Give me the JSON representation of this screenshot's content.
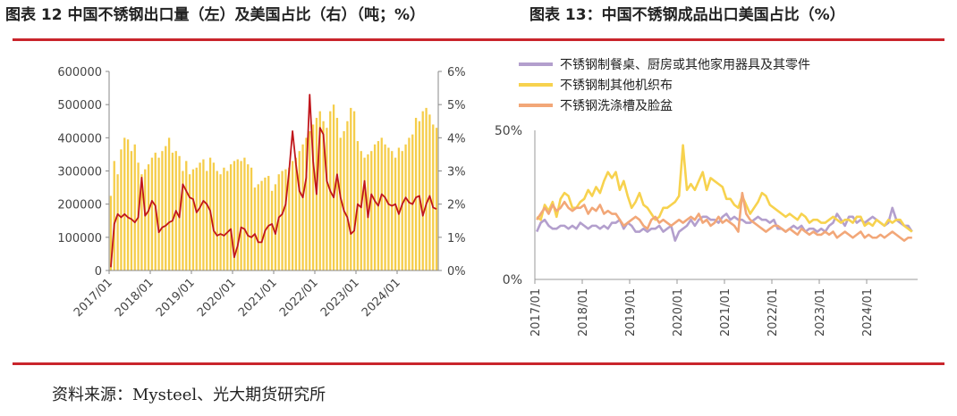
{
  "header": {
    "left_title": "图表 12 中国不锈钢出口量（左）及美国占比（右）（吨；%）",
    "right_title": "图表 13：中国不锈钢成品出口美国占比（%）"
  },
  "footer": {
    "source": "资料来源：Mysteel、光大期货研究所"
  },
  "colors": {
    "bar": "#f5cd4a",
    "ratio": "#c0161c",
    "rule": "#c9252c",
    "s1": "#b39fcd",
    "s2": "#f7d24e",
    "s3": "#f2a778"
  },
  "chart_data": [
    {
      "type": "bar",
      "title": "",
      "x_ticks": [
        "2017/01",
        "2018/01",
        "2019/01",
        "2020/01",
        "2021/01",
        "2022/01",
        "2023/01",
        "2024/01"
      ],
      "y_left_ticks": [
        "0",
        "100000",
        "200000",
        "300000",
        "400000",
        "500000",
        "600000"
      ],
      "y_right_ticks": [
        "0%",
        "1%",
        "2%",
        "3%",
        "4%",
        "5%",
        "6%"
      ],
      "ylim_left": [
        0,
        600000
      ],
      "ylim_right": [
        0,
        6
      ],
      "start_month": "2017/01",
      "series": [
        {
          "axis": "left",
          "type": "bar",
          "values": [
            225000,
            330000,
            290000,
            365000,
            400000,
            395000,
            360000,
            380000,
            325000,
            290000,
            305000,
            320000,
            340000,
            355000,
            340000,
            360000,
            375000,
            400000,
            355000,
            360000,
            345000,
            300000,
            330000,
            290000,
            305000,
            310000,
            325000,
            335000,
            300000,
            340000,
            325000,
            300000,
            290000,
            310000,
            300000,
            320000,
            330000,
            335000,
            330000,
            340000,
            320000,
            310000,
            250000,
            260000,
            270000,
            280000,
            285000,
            240000,
            260000,
            290000,
            300000,
            305000,
            310000,
            330000,
            340000,
            360000,
            380000,
            400000,
            420000,
            440000,
            460000,
            480000,
            450000,
            430000,
            480000,
            500000,
            460000,
            400000,
            420000,
            450000,
            490000,
            480000,
            390000,
            360000,
            340000,
            350000,
            360000,
            380000,
            390000,
            400000,
            380000,
            370000,
            360000,
            340000,
            370000,
            360000,
            380000,
            400000,
            410000,
            460000,
            450000,
            480000,
            490000,
            470000,
            440000,
            430000
          ]
        },
        {
          "axis": "right",
          "type": "line",
          "values": [
            0.1,
            1.4,
            1.7,
            1.6,
            1.7,
            1.6,
            1.55,
            1.45,
            1.6,
            2.8,
            1.65,
            1.8,
            2.1,
            1.95,
            1.15,
            1.3,
            1.35,
            1.45,
            1.5,
            1.8,
            1.6,
            2.6,
            2.4,
            2.2,
            2.15,
            1.75,
            1.9,
            2.1,
            2.0,
            1.8,
            1.2,
            1.05,
            1.1,
            1.05,
            1.15,
            1.25,
            0.4,
            0.75,
            1.3,
            1.25,
            1.05,
            1.0,
            1.1,
            0.85,
            0.85,
            1.2,
            1.35,
            1.4,
            1.1,
            1.6,
            1.7,
            2.0,
            3.0,
            4.2,
            3.2,
            2.4,
            2.2,
            2.8,
            5.3,
            3.3,
            2.3,
            4.3,
            4.1,
            2.7,
            2.4,
            2.2,
            2.9,
            2.2,
            1.8,
            1.6,
            1.1,
            1.2,
            2.0,
            1.9,
            2.7,
            1.6,
            2.3,
            2.1,
            1.95,
            2.3,
            2.2,
            2.0,
            1.95,
            2.0,
            1.7,
            2.0,
            2.2,
            2.05,
            2.0,
            2.2,
            2.25,
            1.65,
            2.0,
            2.25,
            1.9,
            1.85
          ]
        }
      ]
    },
    {
      "type": "line",
      "title": "",
      "x_ticks": [
        "2017/01",
        "2018/01",
        "2019/01",
        "2020/01",
        "2021/01",
        "2022/01",
        "2023/01",
        "2024/01"
      ],
      "y_ticks": [
        "0%",
        "50%"
      ],
      "ylim": [
        0,
        50
      ],
      "start_month": "2017/01",
      "series": [
        {
          "name": "不锈钢制餐桌、厨房或其他家用器具及其零件",
          "values": [
            16,
            19,
            20,
            18,
            17,
            17,
            18,
            18,
            17,
            18,
            17,
            19,
            18,
            17,
            18,
            18,
            17,
            18,
            17,
            19,
            19,
            20,
            17,
            19,
            18,
            16,
            16,
            17,
            16,
            17,
            17,
            18,
            16,
            17,
            18,
            13,
            16,
            17,
            18,
            20,
            18,
            20,
            21,
            21,
            20,
            20,
            19,
            21,
            22,
            20,
            21,
            20,
            20,
            19,
            19,
            20,
            21,
            20,
            20,
            19,
            20,
            17,
            17,
            16,
            17,
            18,
            17,
            18,
            16,
            17,
            17,
            16,
            17,
            16,
            18,
            19,
            22,
            20,
            18,
            21,
            21,
            19,
            20,
            19,
            20,
            21,
            20,
            19,
            18,
            19,
            24,
            20,
            19,
            18,
            18,
            16
          ]
        },
        {
          "name": "不锈钢制其他机织布",
          "values": [
            21,
            20,
            25,
            23,
            26,
            21,
            27,
            29,
            28,
            24,
            24,
            26,
            27,
            30,
            28,
            31,
            29,
            33,
            36,
            34,
            36,
            30,
            33,
            28,
            24,
            26,
            29,
            25,
            24,
            22,
            20,
            21,
            24,
            24,
            25,
            26,
            28,
            45,
            30,
            32,
            30,
            33,
            36,
            30,
            34,
            33,
            32,
            31,
            27,
            27,
            25,
            24,
            28,
            25,
            22,
            24,
            26,
            29,
            28,
            25,
            24,
            23,
            22,
            21,
            22,
            21,
            20,
            22,
            21,
            19,
            20,
            20,
            19,
            19,
            20,
            21,
            20,
            19,
            20,
            20,
            19,
            21,
            21,
            18,
            19,
            18,
            20,
            19,
            18,
            20,
            19,
            20,
            20,
            18,
            17,
            16
          ]
        },
        {
          "name": "不锈钢洗涤槽及脸盆",
          "values": [
            20,
            22,
            24,
            22,
            25,
            23,
            24,
            26,
            24,
            23,
            24,
            24,
            25,
            22,
            24,
            23,
            25,
            22,
            23,
            22,
            22,
            20,
            18,
            19,
            20,
            21,
            20,
            18,
            17,
            20,
            21,
            19,
            20,
            19,
            18,
            19,
            20,
            19,
            20,
            21,
            20,
            22,
            19,
            20,
            18,
            19,
            21,
            19,
            20,
            19,
            18,
            16,
            29,
            22,
            20,
            19,
            18,
            17,
            16,
            17,
            18,
            18,
            17,
            16,
            17,
            16,
            15,
            17,
            16,
            15,
            16,
            15,
            15,
            16,
            15,
            16,
            14,
            15,
            16,
            15,
            14,
            15,
            16,
            14,
            15,
            14,
            14,
            15,
            14,
            15,
            16,
            15,
            14,
            13,
            14,
            14
          ]
        }
      ]
    }
  ]
}
